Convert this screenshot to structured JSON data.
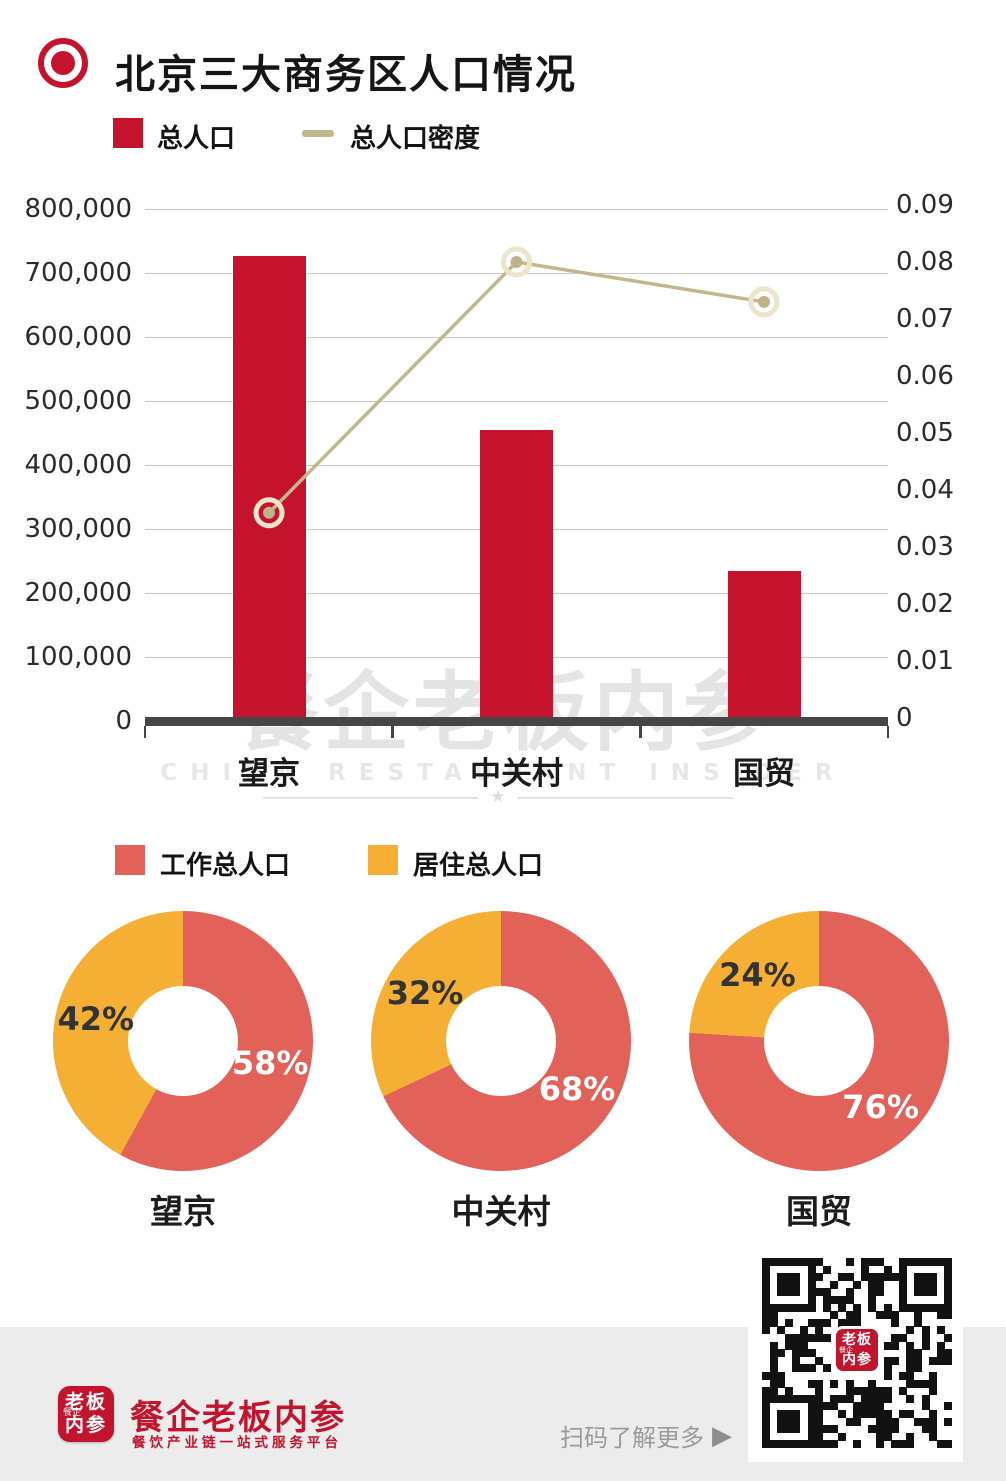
{
  "header": {
    "title": "北京三大商务区人口情况"
  },
  "combo_legend": {
    "bar_label": "总人口",
    "line_label": "总人口密度"
  },
  "donut_legend": {
    "work_label": "工作总人口",
    "live_label": "居住总人口"
  },
  "watermark": {
    "cn": "餐企老板内参",
    "en": "CHINA RESTAURANT INSIDER",
    "star": "★"
  },
  "footer": {
    "brand_logo_line1": "老板",
    "brand_logo_line2": "内参",
    "brand_logo_small": "餐企",
    "brand_name": "餐企老板内参",
    "tagline": "餐饮产业链一站式服务平台",
    "scan_text": "扫码了解更多",
    "scan_arrow": "▶"
  },
  "colors": {
    "primary_red": "#C5122D",
    "density_line": "#C2B68C",
    "density_marker_ring": "#EDE5C9",
    "density_marker_dot": "#BFB389",
    "work": "#E2625A",
    "live": "#F5AF34",
    "grid": "#C9C9C9",
    "axis": "#464646",
    "brand_red": "#C3142E"
  },
  "chart_data": [
    {
      "type": "bar",
      "subtype": "combo-bar-line",
      "title": "北京三大商务区人口情况",
      "categories": [
        "望京",
        "中关村",
        "国贸"
      ],
      "series": [
        {
          "name": "总人口",
          "kind": "bar",
          "axis": "left",
          "values": [
            727000,
            455000,
            235000
          ]
        },
        {
          "name": "总人口密度",
          "kind": "line",
          "axis": "right",
          "values": [
            0.036,
            0.08,
            0.073
          ]
        }
      ],
      "left_axis": {
        "min": 0,
        "max": 800000,
        "step": 100000,
        "ticks": [
          "800,000",
          "700,000",
          "600,000",
          "500,000",
          "400,000",
          "300,000",
          "200,000",
          "100,000",
          "0"
        ]
      },
      "right_axis": {
        "min": 0,
        "max": 0.09,
        "step": 0.01,
        "ticks": [
          "0.09",
          "0.08",
          "0.07",
          "0.06",
          "0.05",
          "0.04",
          "0.03",
          "0.02",
          "0.01",
          "0"
        ]
      },
      "grid": true,
      "legend_position": "top"
    },
    {
      "type": "pie",
      "title": "望京",
      "labels": [
        "工作总人口",
        "居住总人口"
      ],
      "values": [
        58,
        42
      ],
      "labels_text": [
        "58%",
        "42%"
      ],
      "hole": true
    },
    {
      "type": "pie",
      "title": "中关村",
      "labels": [
        "工作总人口",
        "居住总人口"
      ],
      "values": [
        68,
        32
      ],
      "labels_text": [
        "68%",
        "32%"
      ],
      "hole": true
    },
    {
      "type": "pie",
      "title": "国贸",
      "labels": [
        "工作总人口",
        "居住总人口"
      ],
      "values": [
        76,
        24
      ],
      "labels_text": [
        "76%",
        "24%"
      ],
      "hole": true
    }
  ]
}
